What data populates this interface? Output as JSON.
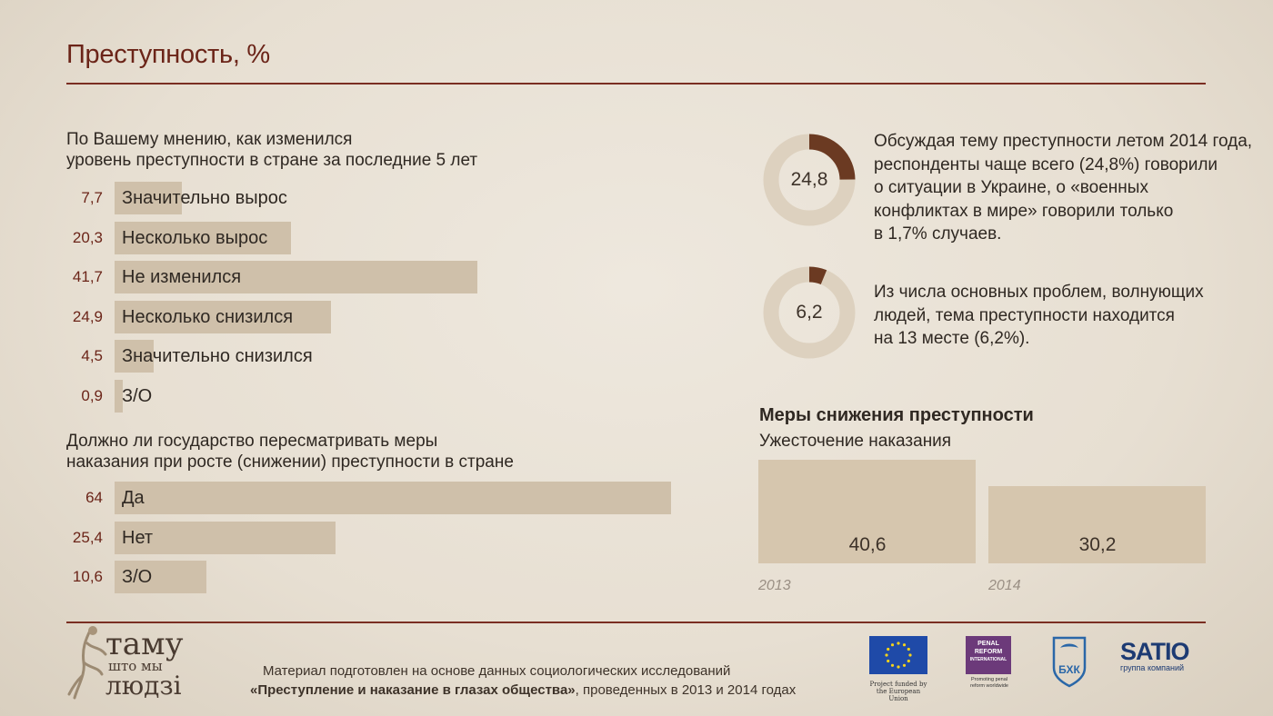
{
  "page": {
    "title": "Преступность, %"
  },
  "question1": {
    "text_line1": "По Вашему мнению, как изменился",
    "text_line2": "уровень преступности в стране за последние 5 лет"
  },
  "question2": {
    "text_line1": "Должно ли государство пересматривать меры",
    "text_line2": "наказания при росте (снижении) преступности в стране"
  },
  "donuts": [
    {
      "value": "24,8",
      "fraction": 0.248,
      "note": [
        "Обсуждая тему преступности летом 2014 года,",
        "респонденты чаще всего (24,8%) говорили",
        "о ситуации в Украине, о «военных",
        "конфликтах в мире» говорили только",
        "в 1,7% случаев."
      ]
    },
    {
      "value": "6,2",
      "fraction": 0.062,
      "note": [
        "Из числа основных проблем, волнующих",
        "людей, тема преступности находится",
        "на 13 месте (6,2%)."
      ]
    }
  ],
  "measures": {
    "title": "Меры снижения преступности",
    "subtitle": "Ужесточение наказания"
  },
  "footer": {
    "line1": "Материал подготовлен на основе данных социологических исследований",
    "line2_bold": "«Преступление и наказание в глазах общества»",
    "line2_rest": ", проведенных в 2013 и 2014 годах",
    "logo_main": [
      "таму",
      "што мы",
      "людзі"
    ],
    "eu_caption": [
      "Project funded by",
      "the European Union"
    ],
    "pri_name": [
      "PENAL",
      "REFORM",
      "INTERNATIONAL"
    ],
    "pri_caption": [
      "Promoting penal",
      "reform worldwide"
    ],
    "bk_text": "БХК",
    "sati_text": "SATIO",
    "sati_sub": "группа компаний"
  },
  "colors": {
    "accent": "#6b2418",
    "bar": "#cfc0aa",
    "donut_bg": "#ddd1bf",
    "donut_fg": "#6b3a22"
  },
  "chart_data": [
    {
      "type": "bar",
      "orientation": "horizontal",
      "categories": [
        "Значительно вырос",
        "Несколько вырос",
        "Не изменился",
        "Несколько снизился",
        "Значительно снизился",
        "З/О"
      ],
      "values": [
        7.7,
        20.3,
        41.7,
        24.9,
        4.5,
        0.9
      ],
      "labels": [
        "7,7",
        "20,3",
        "41,7",
        "24,9",
        "4,5",
        "0,9"
      ],
      "xlim": [
        0,
        64
      ]
    },
    {
      "type": "bar",
      "orientation": "horizontal",
      "categories": [
        "Да",
        "Нет",
        "З/О"
      ],
      "values": [
        64,
        25.4,
        10.6
      ],
      "labels": [
        "64",
        "25,4",
        "10,6"
      ],
      "xlim": [
        0,
        64
      ]
    },
    {
      "type": "bar",
      "categories": [
        "2013",
        "2014"
      ],
      "values": [
        40.6,
        30.2
      ],
      "labels": [
        "40,6",
        "30,2"
      ],
      "ylim": [
        0,
        40.6
      ]
    }
  ]
}
